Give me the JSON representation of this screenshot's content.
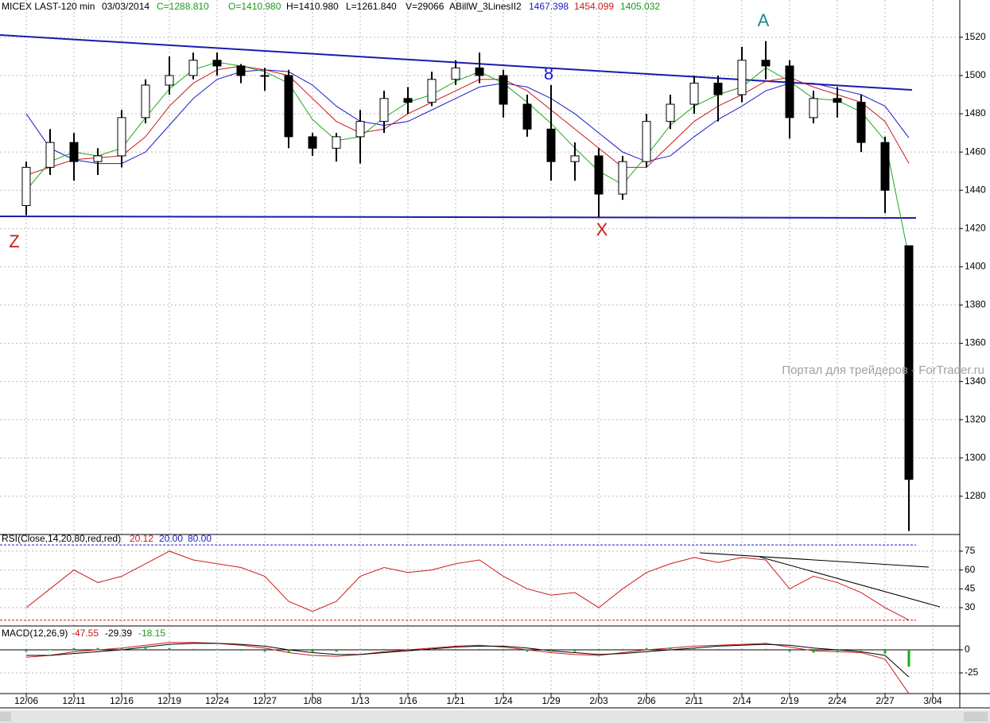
{
  "header": {
    "symbol": "MICEX LAST-120 min",
    "date": "03/03/2014",
    "close": "C=1288.810",
    "open": "O=1410.980",
    "high": "H=1410.980",
    "low": "L=1261.840",
    "volume": "V=29066",
    "indicator": "ABillW_3LinesII2"
  },
  "watermark": "Портал для трейдеров - ForTrader.ru",
  "chart_data": [
    {
      "type": "candlestick",
      "categories": [
        "12/06",
        null,
        "12/11",
        null,
        "12/16",
        null,
        "12/19",
        null,
        "12/24",
        null,
        "12/27",
        null,
        "1/08",
        null,
        "1/13",
        null,
        "1/16",
        null,
        "1/21",
        null,
        "1/24",
        null,
        "1/29",
        null,
        "2/03",
        null,
        "2/06",
        null,
        "2/11",
        null,
        "2/14",
        null,
        "2/19",
        null,
        "2/24",
        null,
        "2/27",
        null,
        "3/04"
      ],
      "open": [
        1432,
        1452,
        1465,
        1455,
        1458,
        1478,
        1495,
        1500,
        1508,
        1505,
        1500,
        1500,
        1468,
        1462,
        1468,
        1476,
        1488,
        1486,
        1498,
        1504,
        1500,
        1485,
        1472,
        1455,
        1458,
        1438,
        1455,
        1476,
        1485,
        1496,
        1490,
        1508,
        1505,
        1478,
        1488,
        1486,
        1465,
        1410.98,
        null
      ],
      "high": [
        1455,
        1472,
        1470,
        1462,
        1482,
        1498,
        1510,
        1512,
        1512,
        1506,
        1504,
        1503,
        1470,
        1470,
        1482,
        1492,
        1494,
        1502,
        1508,
        1512,
        1503,
        1490,
        1495,
        1465,
        1462,
        1458,
        1480,
        1490,
        1500,
        1500,
        1515,
        1518,
        1508,
        1492,
        1494,
        1490,
        1468,
        1410.98,
        null
      ],
      "low": [
        1427,
        1448,
        1445,
        1448,
        1452,
        1475,
        1490,
        1498,
        1500,
        1496,
        1492,
        1462,
        1458,
        1455,
        1454,
        1470,
        1480,
        1484,
        1495,
        1496,
        1478,
        1468,
        1445,
        1445,
        1426,
        1435,
        1452,
        1472,
        1480,
        1476,
        1486,
        1498,
        1467,
        1475,
        1478,
        1460,
        1428,
        1261.84,
        null
      ],
      "close": [
        1452,
        1465,
        1455,
        1458,
        1478,
        1495,
        1500,
        1508,
        1505,
        1500,
        1500,
        1468,
        1462,
        1468,
        1476,
        1488,
        1486,
        1498,
        1504,
        1500,
        1485,
        1472,
        1455,
        1458,
        1438,
        1455,
        1476,
        1485,
        1496,
        1490,
        1508,
        1505,
        1478,
        1488,
        1486,
        1465,
        1440,
        1288.81,
        null
      ],
      "up_color": "#ffffff",
      "down_color": "#000000",
      "series": [
        {
          "color": "#1a1acc",
          "values": [
            1480,
            1462,
            1456,
            1454,
            1454,
            1460,
            1474,
            1488,
            1498,
            1502,
            1503,
            1502,
            1495,
            1484,
            1476,
            1474,
            1476,
            1482,
            1488,
            1494,
            1496,
            1494,
            1488,
            1480,
            1470,
            1460,
            1455,
            1458,
            1468,
            1477,
            1484,
            1492,
            1496,
            1496,
            1493,
            1490,
            1484,
            1467.398,
            null
          ]
        },
        {
          "color": "#cc1a1a",
          "values": [
            1448,
            1452,
            1456,
            1457,
            1458,
            1468,
            1484,
            1496,
            1503,
            1505,
            1503,
            1500,
            1488,
            1476,
            1470,
            1472,
            1480,
            1486,
            1492,
            1498,
            1498,
            1492,
            1482,
            1472,
            1462,
            1452,
            1452,
            1464,
            1476,
            1484,
            1490,
            1497,
            1499,
            1494,
            1490,
            1486,
            1476,
            1454.099,
            null
          ]
        },
        {
          "color": "#1aaa1a",
          "values": [
            1440,
            1455,
            1460,
            1458,
            1462,
            1478,
            1493,
            1503,
            1507,
            1505,
            1502,
            1496,
            1477,
            1466,
            1468,
            1478,
            1486,
            1490,
            1497,
            1502,
            1496,
            1486,
            1475,
            1462,
            1450,
            1443,
            1458,
            1474,
            1484,
            1490,
            1494,
            1504,
            1497,
            1488,
            1487,
            1481,
            1466,
            1405.032,
            null
          ]
        }
      ],
      "annotations": [
        {
          "text": "Z",
          "color": "#cc1a1a"
        },
        {
          "text": "8",
          "color": "#1a1acc"
        },
        {
          "text": "X",
          "color": "#cc1a1a"
        },
        {
          "text": "A",
          "color": "#1a8a8a"
        }
      ],
      "ylim": [
        1260,
        1539.5
      ],
      "yticks": [
        1280,
        1300,
        1320,
        1340,
        1360,
        1380,
        1400,
        1420,
        1440,
        1460,
        1480,
        1500,
        1520
      ],
      "grid": true
    },
    {
      "type": "line",
      "title": "RSI(Close,14,20,80,red,red)",
      "series": [
        {
          "color": "#cc1a1a",
          "values": [
            30,
            45,
            60,
            50,
            55,
            65,
            75,
            68,
            65,
            62,
            55,
            35,
            27,
            35,
            55,
            62,
            58,
            60,
            65,
            68,
            55,
            45,
            40,
            42,
            30,
            45,
            58,
            65,
            70,
            66,
            70,
            68,
            45,
            55,
            50,
            42,
            30,
            20.12,
            null
          ]
        }
      ],
      "levels": [
        {
          "value": 20,
          "label": "20.00",
          "color": "#cc1a1a"
        },
        {
          "value": 80,
          "label": "80.00",
          "color": "#1a1acc"
        }
      ],
      "ylim": [
        15.4,
        88.3
      ],
      "yticks": [
        30,
        45,
        60,
        75
      ],
      "grid": true
    },
    {
      "type": "line",
      "title": "MACD(12,26,9)",
      "series": [
        {
          "color": "#cc1a1a",
          "values": [
            -8,
            -6,
            -2,
            0,
            2,
            5,
            8,
            8,
            7,
            5,
            2,
            -3,
            -6,
            -7,
            -5,
            -2,
            0,
            2,
            4,
            5,
            3,
            0,
            -3,
            -5,
            -6,
            -3,
            0,
            2,
            4,
            5,
            6,
            7,
            3,
            -1,
            -2,
            -3,
            -10,
            -47.55,
            null
          ]
        },
        {
          "color": "#000000",
          "values": [
            -6,
            -6,
            -4,
            -2,
            0,
            3,
            6,
            7,
            7,
            6,
            4,
            0,
            -3,
            -5,
            -5,
            -3,
            -1,
            1,
            3,
            4,
            4,
            2,
            -1,
            -3,
            -5,
            -4,
            -2,
            0,
            2,
            4,
            5,
            6,
            5,
            2,
            0,
            -2,
            -6,
            -29.39,
            null
          ]
        },
        {
          "color": "#1aaa1a",
          "bars": true,
          "values": [
            -2,
            0,
            2,
            2,
            2,
            2,
            2,
            1,
            0,
            -1,
            -2,
            -3,
            -3,
            -2,
            0,
            1,
            1,
            1,
            1,
            1,
            -1,
            -2,
            -2,
            -2,
            -1,
            1,
            2,
            2,
            2,
            1,
            1,
            1,
            -2,
            -3,
            -2,
            -1,
            -4,
            -18.15,
            null
          ]
        }
      ],
      "ylim": [
        -47.4,
        25.9
      ],
      "yticks": [
        -25,
        0
      ],
      "grid": true
    }
  ]
}
